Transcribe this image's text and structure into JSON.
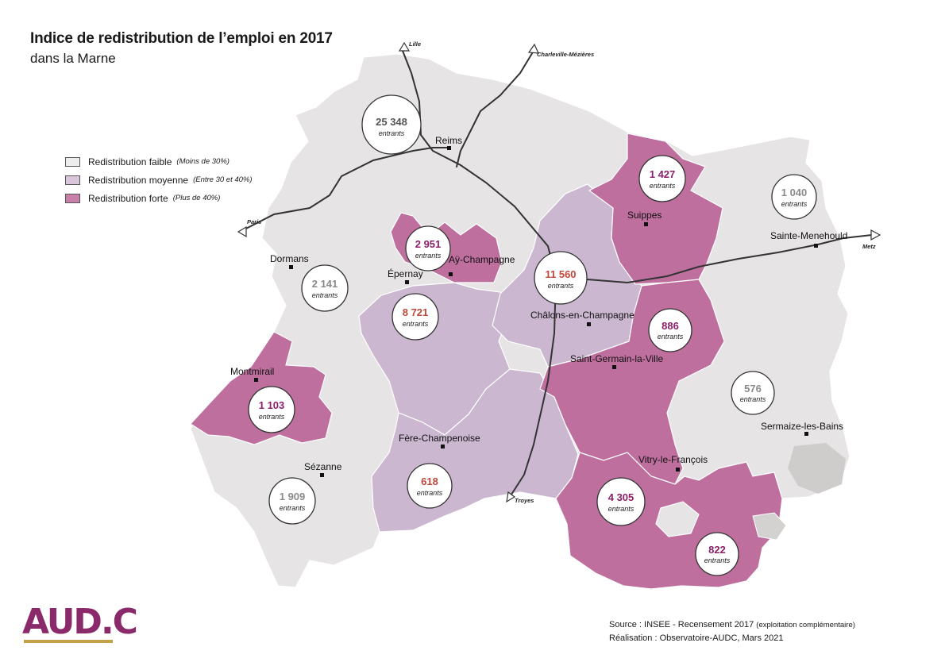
{
  "header": {
    "title": "Indice de redistribution de l’emploi en 2017",
    "subtitle": "dans la Marne"
  },
  "legend": {
    "items": [
      {
        "label": "Redistribution faible",
        "note": "(Moins de 30%)",
        "color": "#ededed"
      },
      {
        "label": "Redistribution moyenne",
        "note": "(Entre 30 et 40%)",
        "color": "#d9c6db"
      },
      {
        "label": "Redistribution forte",
        "note": "(Plus de 40%)",
        "color": "#c87fa8"
      }
    ]
  },
  "colors": {
    "faible": "#e6e4e4",
    "moyenne": "#cbb8d0",
    "forte": "#be6f9e",
    "val_faible": "#8a8a8a",
    "val_moyenne": "#c0473b",
    "val_forte": "#8b1f6a"
  },
  "map": {
    "cities": [
      "Reims",
      "Suippes",
      "Sainte-Menehould",
      "Dormans",
      "Épernay",
      "Aÿ-Champagne",
      "Châlons-en-Champagne",
      "Saint-Germain-la-Ville",
      "Montmirail",
      "Fère-Champenoise",
      "Sézanne",
      "Vitry-le-François",
      "Sermaize-les-Bains"
    ],
    "directions": [
      "Lille",
      "Charleville-Mézières",
      "Paris",
      "Metz",
      "Troyes"
    ],
    "bubbles": [
      {
        "value": "25 348",
        "unit": "entrants",
        "level": "faible"
      },
      {
        "value": "1 427",
        "unit": "entrants",
        "level": "forte"
      },
      {
        "value": "1 040",
        "unit": "entrants",
        "level": "faible"
      },
      {
        "value": "2 951",
        "unit": "entrants",
        "level": "forte"
      },
      {
        "value": "11 560",
        "unit": "entrants",
        "level": "moyenne"
      },
      {
        "value": "2 141",
        "unit": "entrants",
        "level": "faible"
      },
      {
        "value": "8 721",
        "unit": "entrants",
        "level": "moyenne"
      },
      {
        "value": "886",
        "unit": "entrants",
        "level": "forte"
      },
      {
        "value": "1 103",
        "unit": "entrants",
        "level": "forte"
      },
      {
        "value": "576",
        "unit": "entrants",
        "level": "faible"
      },
      {
        "value": "618",
        "unit": "entrants",
        "level": "moyenne"
      },
      {
        "value": "1 909",
        "unit": "entrants",
        "level": "faible"
      },
      {
        "value": "4 305",
        "unit": "entrants",
        "level": "forte"
      },
      {
        "value": "822",
        "unit": "entrants",
        "level": "forte"
      }
    ]
  },
  "footer": {
    "logo_text": "AUD.C",
    "source_line": "Source : INSEE - Recensement 2017",
    "source_note": "(exploitation complémentaire)",
    "realisation": "Réalisation : Observatoire-AUDC, Mars 2021"
  }
}
